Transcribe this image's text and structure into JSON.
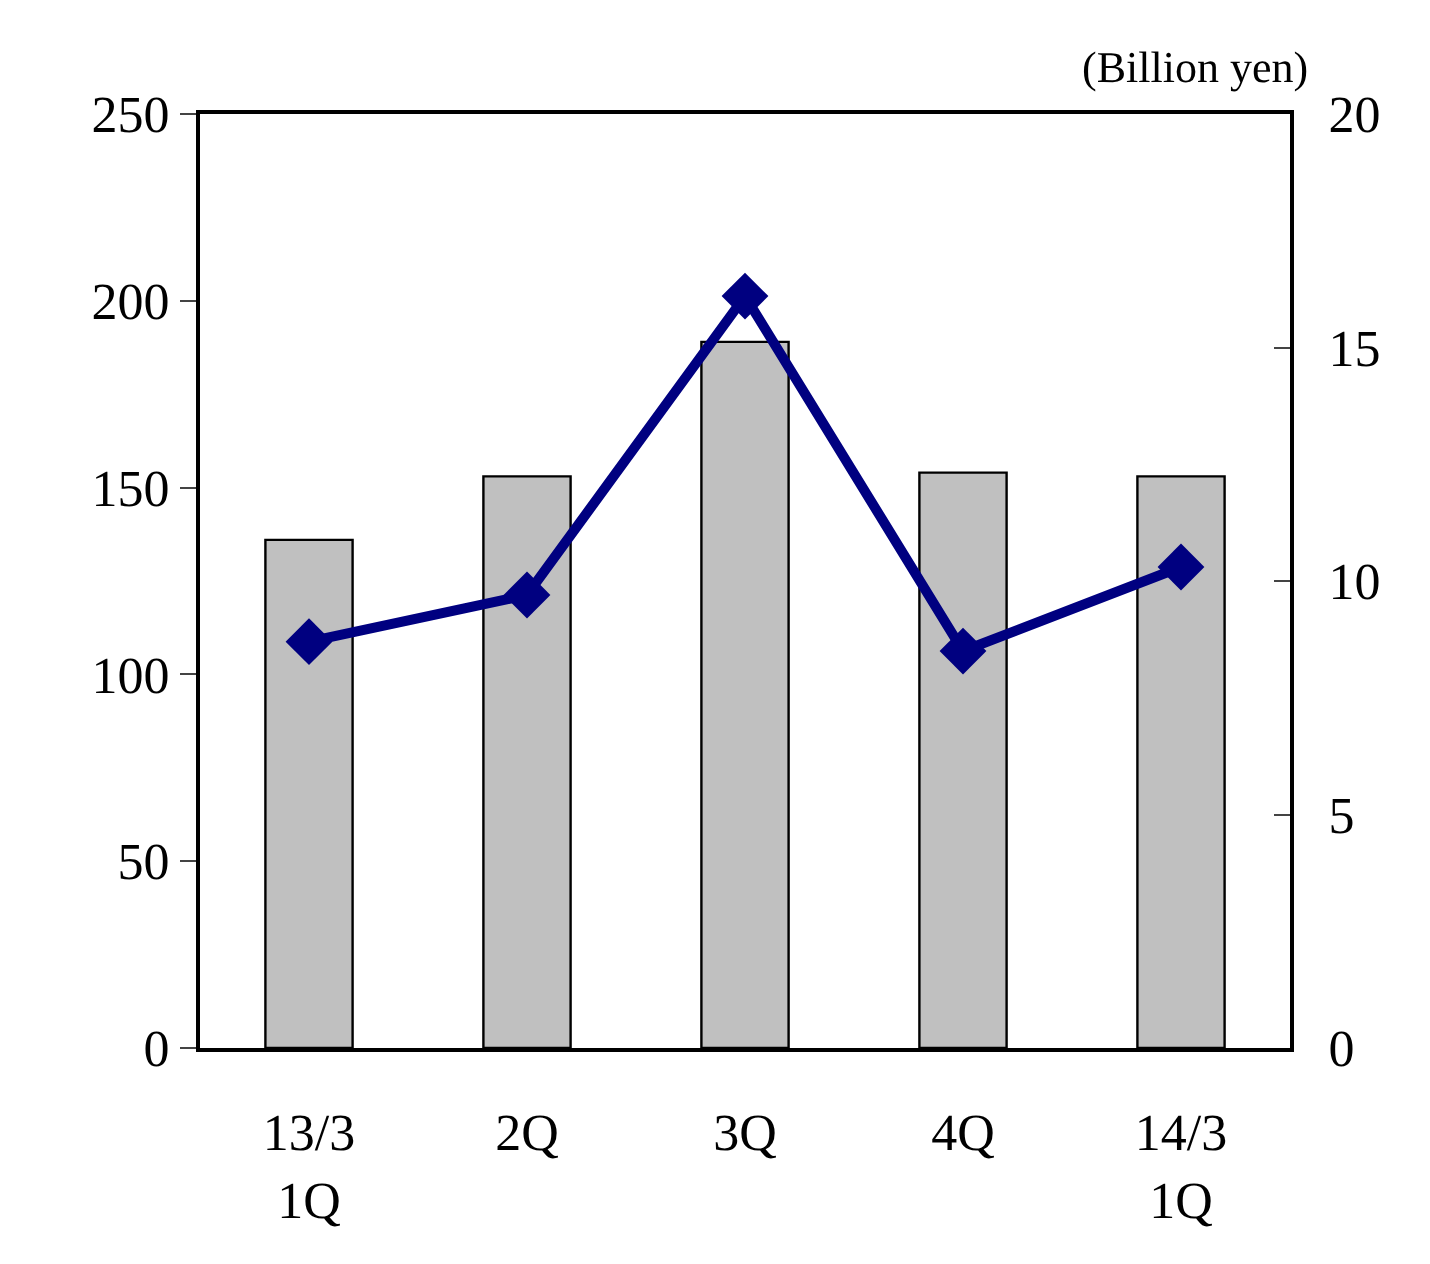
{
  "chart_data": {
    "type": "bar",
    "categories": [
      "13/3\n1Q",
      "2Q",
      "3Q",
      "4Q",
      "14/3\n1Q"
    ],
    "series": [
      {
        "color": "#c0c0c0",
        "values": [
          136,
          153,
          189,
          154,
          153
        ]
      },
      {
        "type": "line",
        "axis": "y2",
        "color": "#000080",
        "marker": "diamond",
        "values": [
          8.7,
          9.7,
          16.1,
          8.5,
          10.3
        ]
      }
    ],
    "ylim": [
      0,
      250
    ],
    "yticks": [
      0,
      50,
      100,
      150,
      200,
      250
    ],
    "y2lim": [
      0,
      20
    ],
    "y2ticks": [
      0,
      5,
      10,
      15,
      20
    ],
    "annotations": [
      "(Billion yen)"
    ]
  }
}
